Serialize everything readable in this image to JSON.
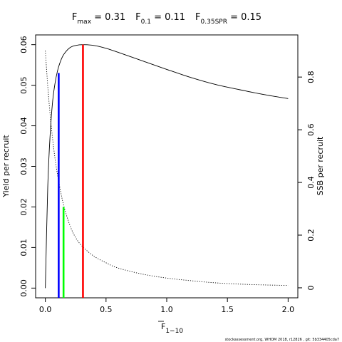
{
  "chart_data": {
    "type": "line",
    "title_parts": [
      {
        "sym": "F",
        "sub": "max",
        "val": " = 0.31"
      },
      {
        "sym": "F",
        "sub": "0.1",
        "val": " = 0.11"
      },
      {
        "sym": "F",
        "sub": "0.35SPR",
        "val": " = 0.15"
      }
    ],
    "xlabel": {
      "sym": "F",
      "sub": "1−10"
    },
    "ylabel_left": "Yield per recruit",
    "ylabel_right": "SSB per recruit",
    "xlim": [
      -0.08,
      2.08
    ],
    "ylim_left": [
      -0.0024,
      0.0624
    ],
    "ylim_right": [
      -0.038,
      0.96
    ],
    "x_ticks": [
      0,
      0.5,
      1,
      1.5,
      2
    ],
    "x_tick_labels": [
      "0.0",
      "0.5",
      "1.0",
      "1.5",
      "2.0"
    ],
    "y_left_ticks": [
      0,
      0.01,
      0.02,
      0.03,
      0.04,
      0.05,
      0.06
    ],
    "y_left_tick_labels": [
      "0.00",
      "0.01",
      "0.02",
      "0.03",
      "0.04",
      "0.05",
      "0.06"
    ],
    "y_right_ticks": [
      0,
      0.2,
      0.4,
      0.6,
      0.8
    ],
    "y_right_tick_labels": [
      "0",
      "0.2",
      "0.4",
      "0.6",
      "0.8"
    ],
    "series": [
      {
        "axis": "left",
        "style": "solid",
        "x": [
          0,
          0.02,
          0.04,
          0.06,
          0.08,
          0.1,
          0.12,
          0.15,
          0.2,
          0.25,
          0.31,
          0.4,
          0.5,
          0.6,
          0.8,
          1.0,
          1.2,
          1.4,
          1.6,
          1.8,
          2.0
        ],
        "y": [
          0,
          0.025,
          0.038,
          0.046,
          0.0505,
          0.0535,
          0.0555,
          0.0575,
          0.0592,
          0.0598,
          0.06,
          0.0598,
          0.0591,
          0.0581,
          0.056,
          0.0539,
          0.0519,
          0.0502,
          0.0489,
          0.0477,
          0.0467
        ]
      },
      {
        "axis": "right",
        "style": "dotted",
        "x": [
          0,
          0.02,
          0.04,
          0.06,
          0.08,
          0.1,
          0.12,
          0.15,
          0.2,
          0.25,
          0.31,
          0.4,
          0.5,
          0.6,
          0.8,
          1.0,
          1.2,
          1.4,
          1.6,
          1.8,
          2.0
        ],
        "y": [
          0.9,
          0.765,
          0.655,
          0.565,
          0.49,
          0.43,
          0.38,
          0.315,
          0.24,
          0.19,
          0.155,
          0.12,
          0.095,
          0.075,
          0.052,
          0.037,
          0.027,
          0.019,
          0.014,
          0.011,
          0.009
        ]
      }
    ],
    "reference_lines": [
      {
        "x": 0.31,
        "y": 0.06,
        "color": "#ff0000"
      },
      {
        "x": 0.11,
        "y": 0.053,
        "color": "#0000ff"
      },
      {
        "x": 0.15,
        "y": 0.02,
        "color": "#00ff00"
      }
    ],
    "footnote": "stockassessment.org, WHOM 2018, r12826 , git: 5b334405cda7"
  }
}
